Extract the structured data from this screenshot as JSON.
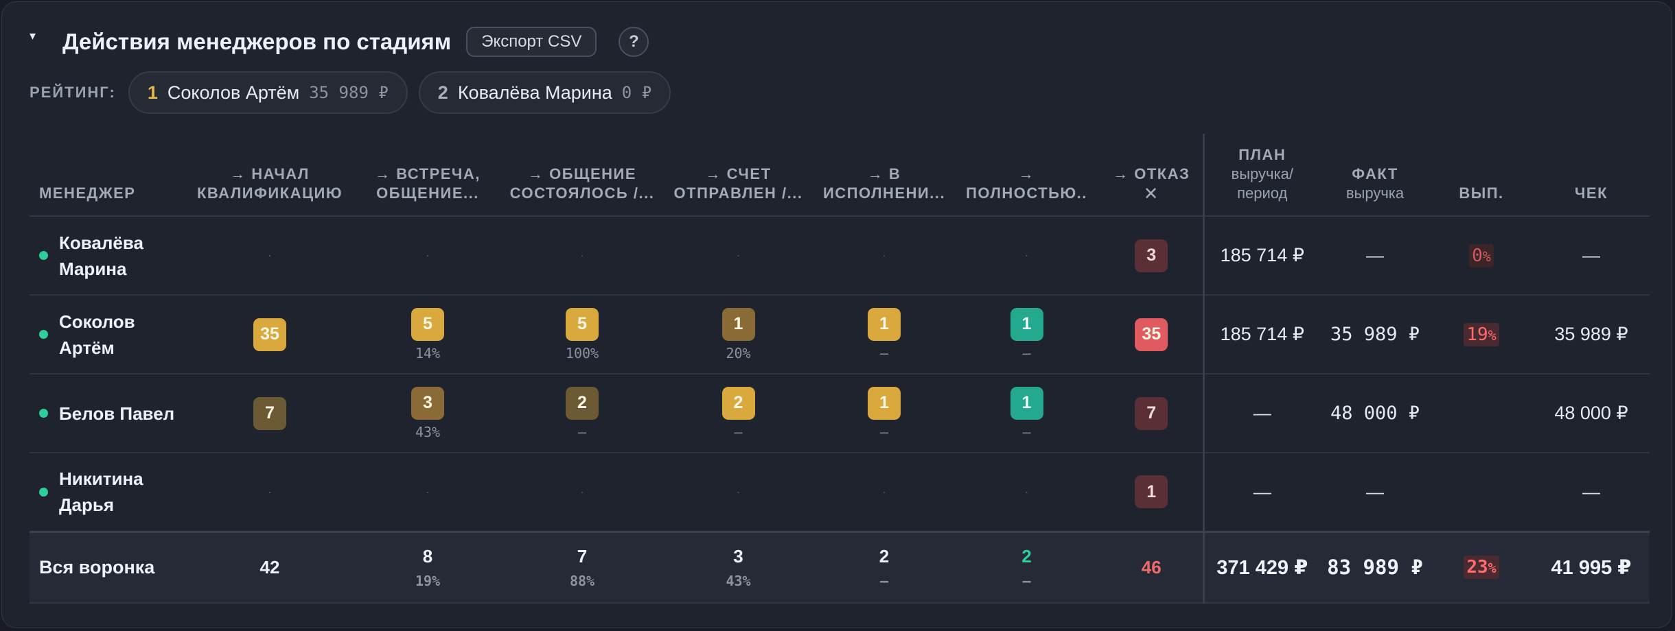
{
  "header": {
    "collapse_icon": "▾",
    "title": "Действия менеджеров по стадиям",
    "export_label": "Экспорт CSV",
    "help_label": "?"
  },
  "rating": {
    "label": "РЕЙТИНГ:",
    "chips": [
      {
        "rank": "1",
        "name": "Соколов Артём",
        "amount": "35 989 ₽"
      },
      {
        "rank": "2",
        "name": "Ковалёва Марина",
        "amount": "0 ₽"
      }
    ]
  },
  "table": {
    "headers": {
      "manager": "МЕНЕДЖЕР",
      "s1": [
        "→ НАЧАЛ",
        "КВАЛИФИКАЦИЮ"
      ],
      "s2": [
        "→ ВСТРЕЧА,",
        "ОБЩЕНИЕ..."
      ],
      "s3": [
        "→ ОБЩЕНИЕ",
        "СОСТОЯЛОСЬ /..."
      ],
      "s4": [
        "→ СЧЕТ",
        "ОТПРАВЛЕН /..."
      ],
      "s5": [
        "→ В",
        "ИСПОЛНЕНИ..."
      ],
      "s6": [
        "→",
        "ПОЛНОСТЬЮ.."
      ],
      "refusal": [
        "→ ОТКАЗ",
        "✕"
      ],
      "plan": [
        "ПЛАН",
        "выручка/",
        "период"
      ],
      "fact": [
        "ФАКТ",
        "выручка"
      ],
      "perf": "ВЫП.",
      "check": "ЧЕК"
    },
    "empty_mark": "·",
    "dash": "—",
    "rows": [
      {
        "name": "Ковалёва Марина",
        "stages": [
          null,
          null,
          null,
          null,
          null,
          null
        ],
        "refusal": "3",
        "plan": "185 714 ₽",
        "fact": "—",
        "perf": "0",
        "perf_unit": "%",
        "check": "—"
      },
      {
        "name": "Соколов Артём",
        "stages": [
          {
            "value": "35",
            "pct": ""
          },
          {
            "value": "5",
            "pct": "14%"
          },
          {
            "value": "5",
            "pct": "100%"
          },
          {
            "value": "1",
            "pct": "20%"
          },
          {
            "value": "1",
            "pct": "—"
          },
          {
            "value": "1",
            "pct": "—"
          }
        ],
        "refusal": "35",
        "plan": "185 714 ₽",
        "fact": "35 989 ₽",
        "perf": "19",
        "perf_unit": "%",
        "check": "35 989 ₽"
      },
      {
        "name": "Белов Павел",
        "stages": [
          {
            "value": "7",
            "pct": ""
          },
          {
            "value": "3",
            "pct": "43%"
          },
          {
            "value": "2",
            "pct": "—"
          },
          {
            "value": "2",
            "pct": "—"
          },
          {
            "value": "1",
            "pct": "—"
          },
          {
            "value": "1",
            "pct": "—"
          }
        ],
        "refusal": "7",
        "plan": "—",
        "fact": "48 000 ₽",
        "perf": "",
        "perf_unit": "",
        "check": "48 000 ₽"
      },
      {
        "name": "Никитина Дарья",
        "stages": [
          null,
          null,
          null,
          null,
          null,
          null
        ],
        "refusal": "1",
        "plan": "—",
        "fact": "—",
        "perf": "",
        "perf_unit": "",
        "check": "—"
      }
    ],
    "total": {
      "label": "Вся воронка",
      "stages": [
        {
          "value": "42",
          "pct": ""
        },
        {
          "value": "8",
          "pct": "19%"
        },
        {
          "value": "7",
          "pct": "88%"
        },
        {
          "value": "3",
          "pct": "43%"
        },
        {
          "value": "2",
          "pct": "—"
        },
        {
          "value": "2",
          "pct": "—"
        }
      ],
      "refusal": "46",
      "plan": "371 429 ₽",
      "fact": "83 989 ₽",
      "perf": "23",
      "perf_unit": "%",
      "check": "41 995 ₽"
    }
  },
  "colors": {
    "accent_green": "#2fcf9c",
    "badge_gold": "#d9a93d",
    "badge_red": "#e05a5f",
    "perf_red": "#ff6b6b"
  }
}
